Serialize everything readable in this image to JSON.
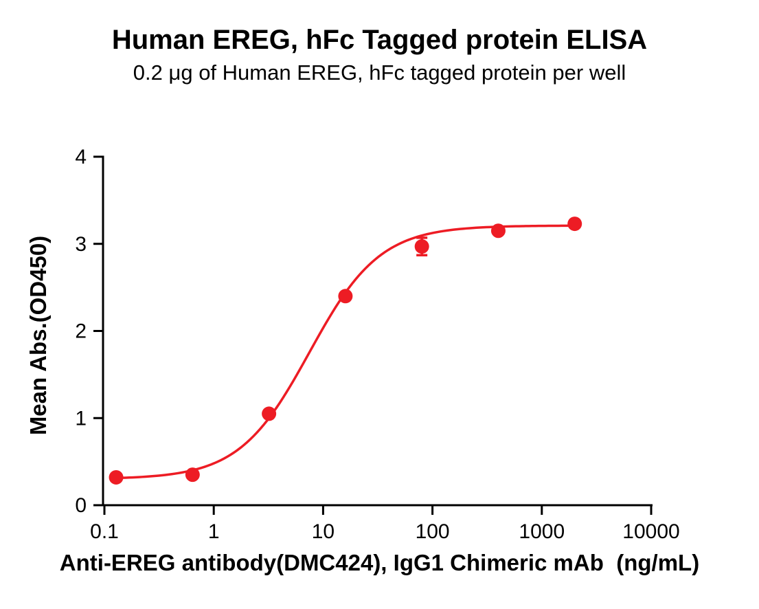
{
  "chart_data": {
    "type": "scatter",
    "title": "Human EREG, hFc Tagged protein ELISA",
    "subtitle": "0.2 μg of Human EREG, hFc tagged protein per well",
    "xlabel": "Anti-EREG antibody(DMC424), IgG1 Chimeric mAb  (ng/mL)",
    "ylabel": "Mean Abs.(OD450)",
    "x_scale": "log10",
    "xlim": [
      0.1,
      10000
    ],
    "ylim": [
      0,
      4
    ],
    "x_ticks": [
      0.1,
      1,
      10,
      100,
      1000,
      10000
    ],
    "x_tick_labels": [
      "0.1",
      "1",
      "10",
      "100",
      "1000",
      "10000"
    ],
    "y_ticks": [
      0,
      1,
      2,
      3,
      4
    ],
    "y_tick_labels": [
      "0",
      "1",
      "2",
      "3",
      "4"
    ],
    "grid": false,
    "legend": false,
    "series": [
      {
        "color": "#ED1C24",
        "marker": "circle",
        "marker_size": 10.5,
        "points": [
          {
            "x": 0.128,
            "y": 0.32,
            "err": 0
          },
          {
            "x": 0.64,
            "y": 0.35,
            "err": 0
          },
          {
            "x": 3.2,
            "y": 1.05,
            "err": 0
          },
          {
            "x": 16,
            "y": 2.4,
            "err": 0
          },
          {
            "x": 80,
            "y": 2.97,
            "err": 0.1
          },
          {
            "x": 400,
            "y": 3.15,
            "err": 0
          },
          {
            "x": 2000,
            "y": 3.23,
            "err": 0
          }
        ],
        "fit_4pl": {
          "bottom": 0.3,
          "top": 3.21,
          "ec50": 7.5,
          "hill": 1.35
        }
      }
    ]
  }
}
